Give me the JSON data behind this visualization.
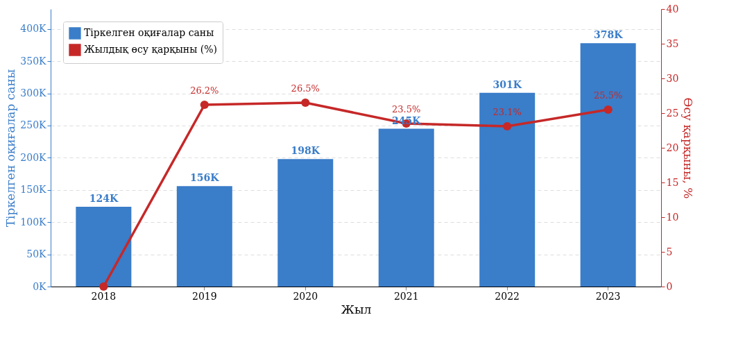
{
  "chart_data": {
    "type": "bar",
    "xlabel": "Жыл",
    "ylabel": "Тіркелген оқиғалар саны",
    "y2label": "Өсу қарқыны, %",
    "categories": [
      "2018",
      "2019",
      "2020",
      "2021",
      "2022",
      "2023"
    ],
    "series": [
      {
        "name": "Тіркелген оқиғалар саны",
        "color": "#3a7dc9",
        "values": [
          124000,
          156000,
          198000,
          245000,
          301000,
          378000
        ],
        "value_labels": [
          "124K",
          "156K",
          "198K",
          "245K",
          "301K",
          "378K"
        ]
      },
      {
        "name": "Жылдық өсу қарқыны (%)",
        "type": "line",
        "axis": "y2",
        "color": "#c62828",
        "values": [
          0,
          26.2,
          26.5,
          23.5,
          23.1,
          25.5
        ],
        "value_labels": [
          null,
          "26.2%",
          "26.5%",
          "23.5%",
          "23.1%",
          "25.5%"
        ]
      }
    ],
    "ylim": [
      0,
      431000
    ],
    "yticks": [
      {
        "value": 0,
        "label": "0K"
      },
      {
        "value": 50000,
        "label": "50K"
      },
      {
        "value": 100000,
        "label": "100K"
      },
      {
        "value": 150000,
        "label": "150K"
      },
      {
        "value": 200000,
        "label": "200K"
      },
      {
        "value": 250000,
        "label": "250K"
      },
      {
        "value": 300000,
        "label": "300K"
      },
      {
        "value": 350000,
        "label": "350K"
      },
      {
        "value": 400000,
        "label": "400K"
      }
    ],
    "y2lim": [
      0,
      40
    ],
    "y2ticks": [
      0,
      5,
      10,
      15,
      20,
      25,
      30,
      35,
      40
    ],
    "grid": "y",
    "legend": "top left",
    "marker": "circle",
    "line_style": "solid"
  }
}
